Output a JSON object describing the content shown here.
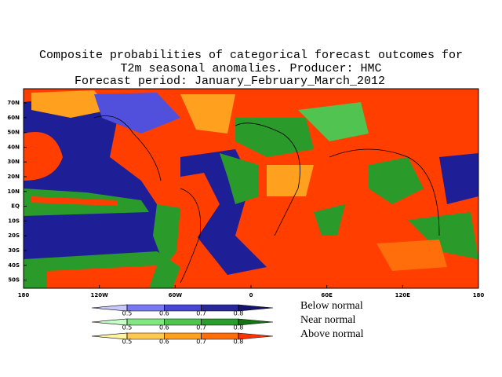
{
  "title_lines": [
    "Composite probabilities of categorical forecast outcomes for",
    "T2m seasonal anomalies. Producer: HMC",
    "Forecast period:  January_February_March_2012"
  ],
  "lat_labels": [
    "70N",
    "60N",
    "50N",
    "40N",
    "30N",
    "20N",
    "10N",
    "EQ",
    "10S",
    "20S",
    "30S",
    "40S",
    "50S"
  ],
  "lon_labels": [
    "180",
    "120W",
    "60W",
    "0",
    "60E",
    "120E",
    "180"
  ],
  "colorbars": [
    {
      "name": "Below normal",
      "ticks": [
        0.5,
        0.6,
        0.7,
        0.8
      ],
      "colors": [
        "#c8c8ff",
        "#7878f0",
        "#4646d2",
        "#28289b",
        "#14146e"
      ]
    },
    {
      "name": "Near normal",
      "ticks": [
        0.5,
        0.6,
        0.7,
        0.8
      ],
      "colors": [
        "#c8ffc8",
        "#82e682",
        "#50c350",
        "#2d9b2d",
        "#147314"
      ]
    },
    {
      "name": "Above normal",
      "ticks": [
        0.5,
        0.6,
        0.7,
        0.8
      ],
      "colors": [
        "#fff5a0",
        "#ffc850",
        "#ffa01e",
        "#ff6e0a",
        "#ff3200"
      ]
    }
  ]
}
